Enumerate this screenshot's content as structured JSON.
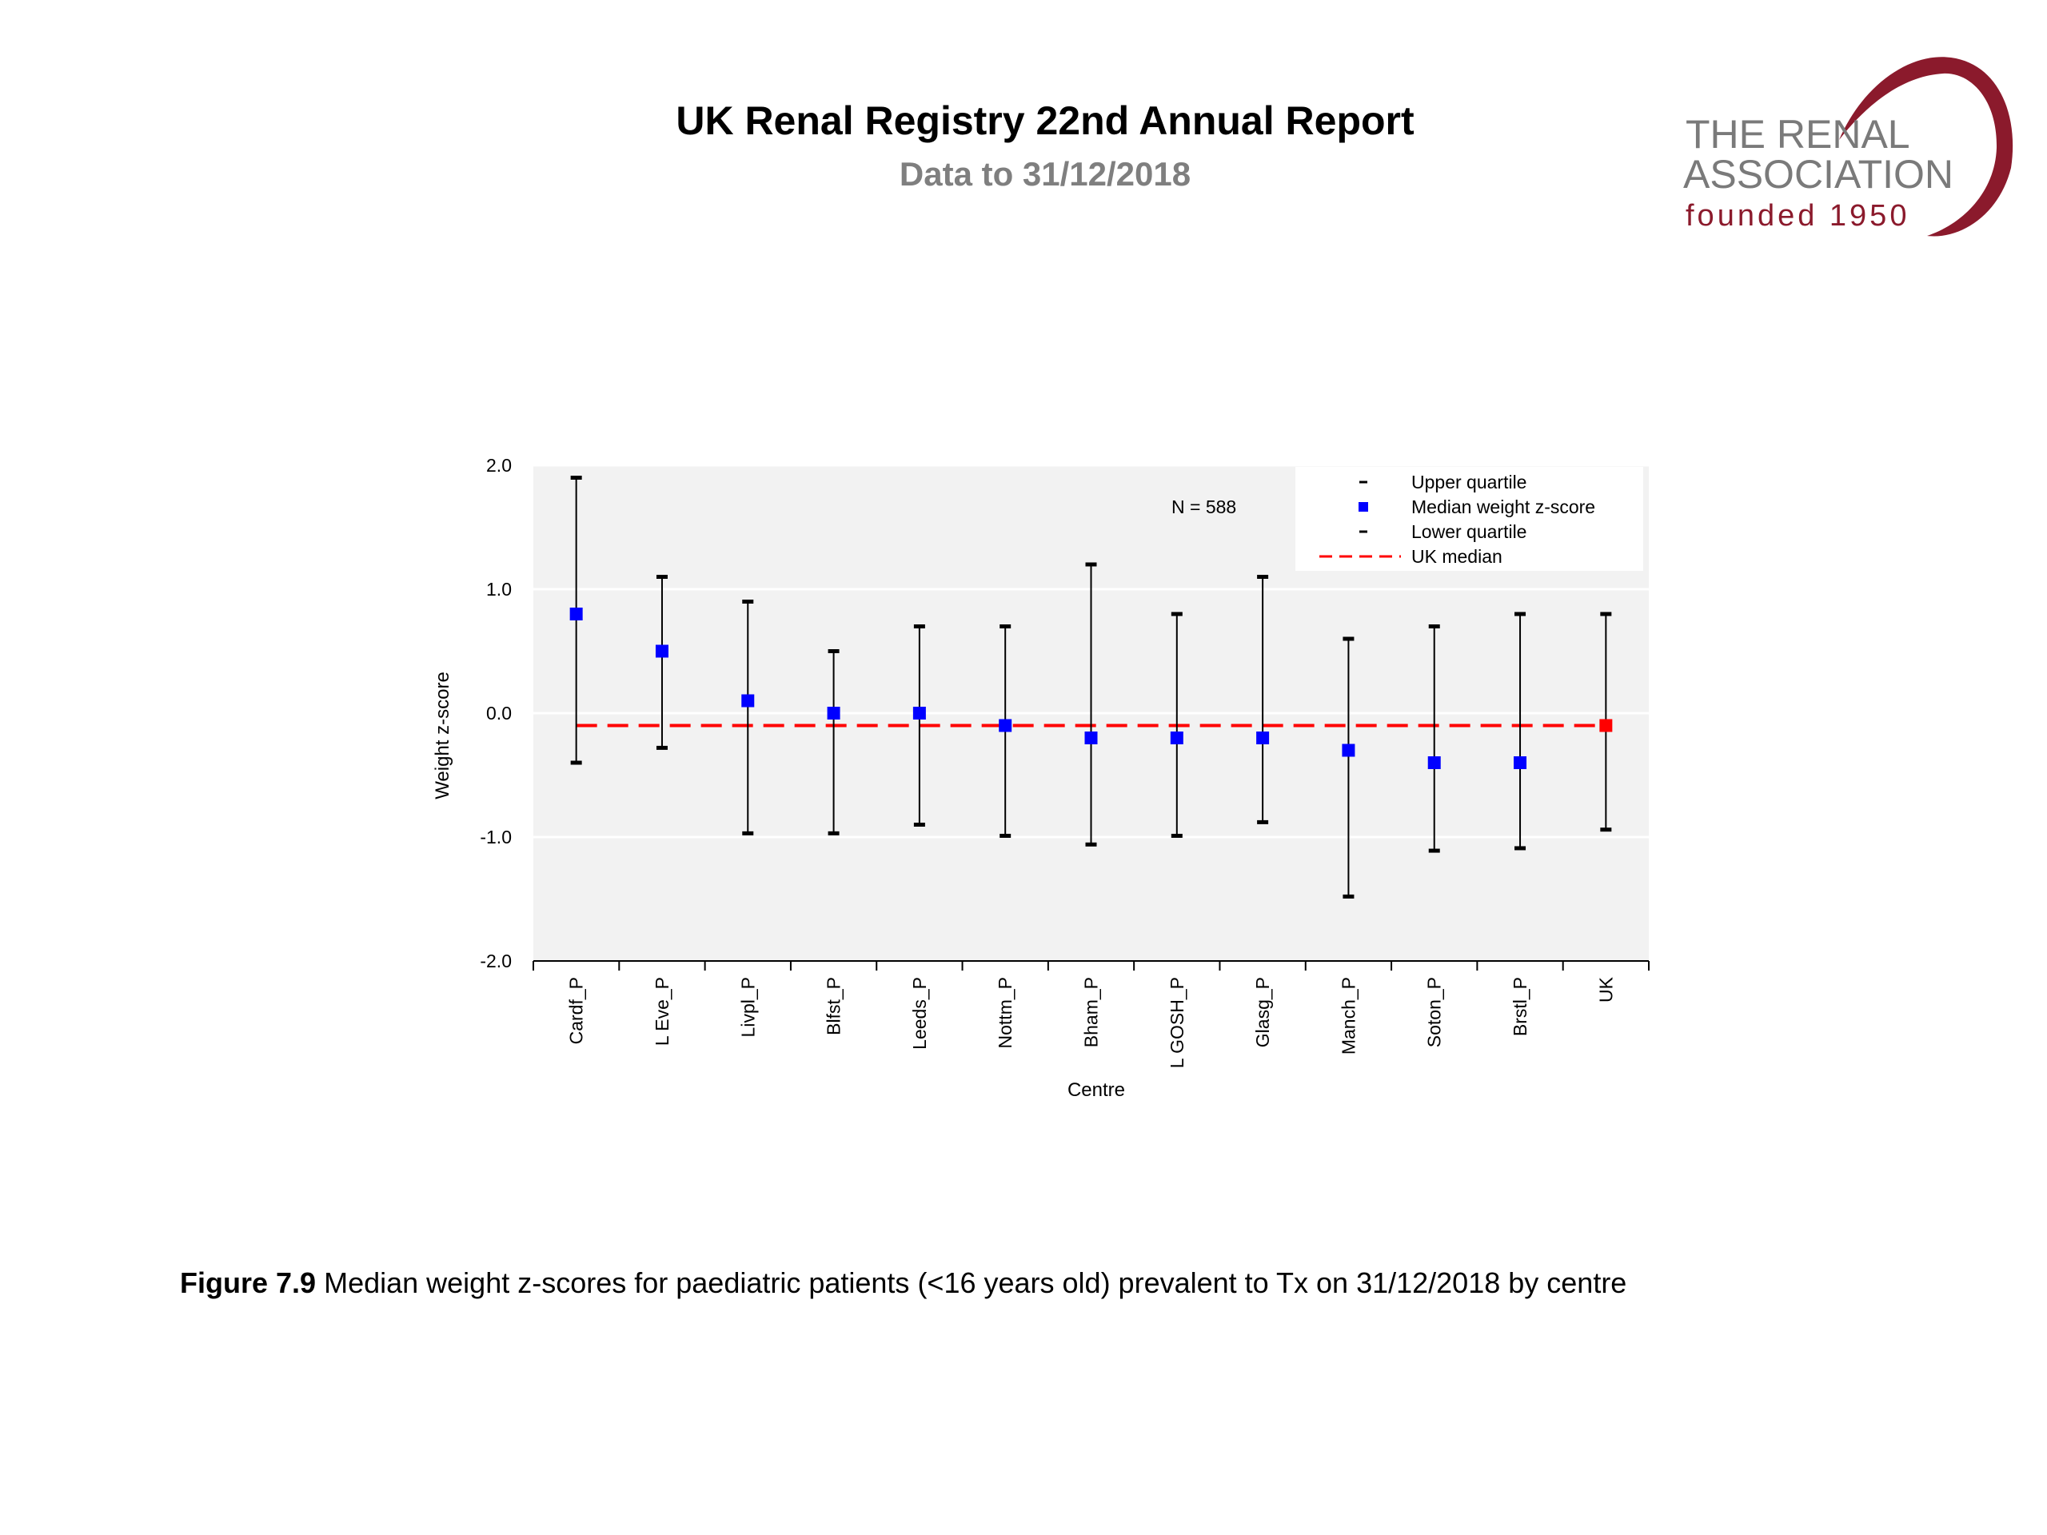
{
  "report": {
    "title": "UK Renal Registry 22nd Annual Report",
    "subtitle": "Data to 31/12/2018"
  },
  "logo": {
    "line1": "THE RENAL",
    "line2": "ASSOCIATION",
    "line3": "founded 1950",
    "color_text": "#7a7a7a",
    "color_brand": "#8b1a2c"
  },
  "caption": {
    "label": "Figure 7.9",
    "text": "Median weight z-scores for paediatric patients (<16 years old) prevalent to Tx on 31/12/2018 by centre"
  },
  "chart_data": {
    "type": "scatter",
    "xlabel": "Centre",
    "ylabel": "Weight z-score",
    "ylim": [
      -2.0,
      2.0
    ],
    "y_ticks": [
      -2.0,
      -1.0,
      0.0,
      1.0,
      2.0
    ],
    "y_tick_labels": [
      "-2.0",
      "-1.0",
      "0.0",
      "1.0",
      "2.0"
    ],
    "annotation": "N = 588",
    "grid": true,
    "plot_background": "#f2f2f2",
    "legend_position": "top-right",
    "legend": [
      {
        "label": "Upper quartile",
        "marker": "dash",
        "color": "#000000"
      },
      {
        "label": "Median weight z-score",
        "marker": "square",
        "color": "#0000ff"
      },
      {
        "label": "Lower quartile",
        "marker": "dash",
        "color": "#000000"
      },
      {
        "label": "UK median",
        "marker": "dashed-line",
        "color": "#ff0000"
      }
    ],
    "categories": [
      "Cardf_P",
      "L Eve_P",
      "Livpl_P",
      "Blfst_P",
      "Leeds_P",
      "Nottm_P",
      "Bham_P",
      "L GOSH_P",
      "Glasg_P",
      "Manch_P",
      "Soton_P",
      "Brstl_P",
      "UK"
    ],
    "median": [
      0.8,
      0.5,
      0.1,
      0.0,
      0.0,
      -0.1,
      -0.2,
      -0.2,
      -0.2,
      -0.3,
      -0.4,
      -0.4,
      -0.1
    ],
    "upper_quartile": [
      1.9,
      1.1,
      0.9,
      0.5,
      0.7,
      0.7,
      1.2,
      0.8,
      1.1,
      0.6,
      0.7,
      0.8,
      0.8
    ],
    "lower_quartile": [
      -0.4,
      -0.28,
      -0.97,
      -0.97,
      -0.9,
      -0.99,
      -1.06,
      -0.99,
      -0.88,
      -1.48,
      -1.11,
      -1.09,
      -0.94
    ],
    "uk_median": -0.1,
    "colors": {
      "median_marker": "#0000ff",
      "uk_marker": "#ff0000",
      "uk_median_line": "#ff0000",
      "whisker": "#000000"
    }
  }
}
